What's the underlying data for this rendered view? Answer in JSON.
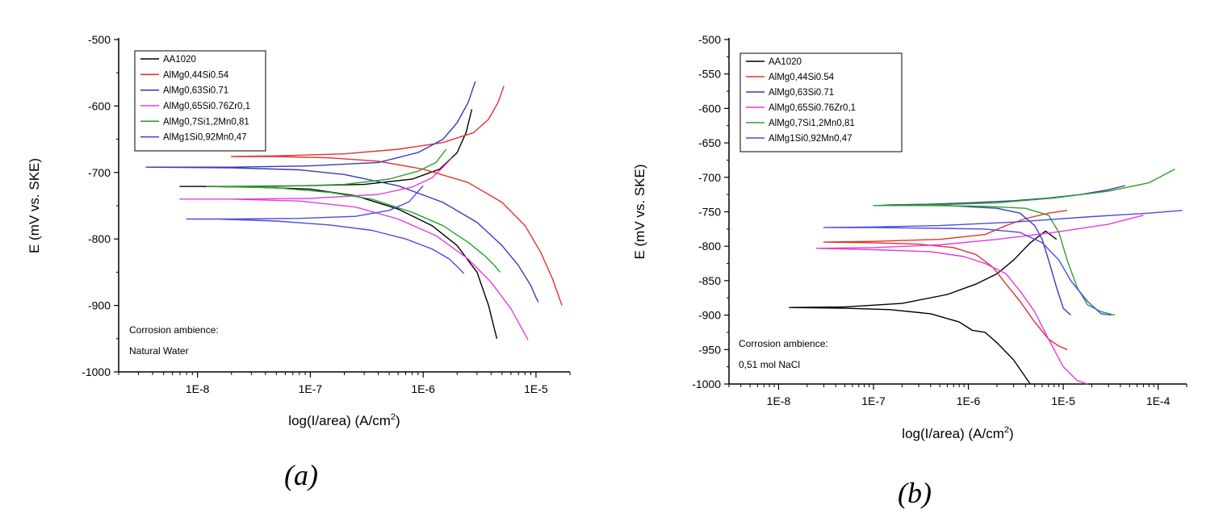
{
  "chart_data": [
    {
      "panel_label": "(a)",
      "type": "line",
      "xlabel_main": "log(I/area) (A/cm",
      "xlabel_sup": "2",
      "xlabel_tail": ")",
      "ylabel": "E (mV vs. SKE)",
      "x_scale": "log",
      "xlim": [
        2e-09,
        2e-05
      ],
      "ylim": [
        -1000,
        -500
      ],
      "x_ticks": [
        1e-08,
        1e-07,
        1e-06,
        1e-05
      ],
      "x_tick_labels": [
        "1E-8",
        "1E-7",
        "1E-6",
        "1E-5"
      ],
      "y_ticks": [
        -500,
        -600,
        -700,
        -800,
        -900,
        -1000
      ],
      "y_tick_labels": [
        "-500",
        "-600",
        "-700",
        "-800",
        "-900",
        "-1000"
      ],
      "grid": false,
      "legend_position": "top-left",
      "annotation": [
        "Corrosion ambience:",
        "Natural Water"
      ],
      "series": [
        {
          "name": "AA1020",
          "color": "#000000",
          "points": [
            [
              4.5e-06,
              -950
            ],
            [
              4.2e-06,
              -930
            ],
            [
              3.8e-06,
              -900
            ],
            [
              3e-06,
              -850
            ],
            [
              2e-06,
              -810
            ],
            [
              1.2e-06,
              -780
            ],
            [
              6e-07,
              -755
            ],
            [
              2.5e-07,
              -735
            ],
            [
              1e-07,
              -725
            ],
            [
              3e-08,
              -722
            ],
            [
              1e-08,
              -721
            ],
            [
              7e-09,
              -721
            ],
            [
              2e-08,
              -721
            ],
            [
              8e-08,
              -720
            ],
            [
              3e-07,
              -718
            ],
            [
              8e-07,
              -710
            ],
            [
              1.4e-06,
              -695
            ],
            [
              2e-06,
              -670
            ],
            [
              2.4e-06,
              -640
            ],
            [
              2.7e-06,
              -605
            ]
          ]
        },
        {
          "name": "AlMg0,44Si0.54",
          "color": "#e8302a",
          "points": [
            [
              1.7e-05,
              -900
            ],
            [
              1.4e-05,
              -860
            ],
            [
              1.1e-05,
              -820
            ],
            [
              8e-06,
              -780
            ],
            [
              5e-06,
              -745
            ],
            [
              2.5e-06,
              -715
            ],
            [
              1e-06,
              -695
            ],
            [
              4e-07,
              -683
            ],
            [
              1.5e-07,
              -678
            ],
            [
              5e-08,
              -676
            ],
            [
              2e-08,
              -676
            ],
            [
              5e-08,
              -675
            ],
            [
              2e-07,
              -672
            ],
            [
              6e-07,
              -665
            ],
            [
              1.5e-06,
              -655
            ],
            [
              2.8e-06,
              -640
            ],
            [
              3.8e-06,
              -620
            ],
            [
              4.6e-06,
              -595
            ],
            [
              5.2e-06,
              -570
            ]
          ]
        },
        {
          "name": "AlMg0,63Si0.71",
          "color": "#3a3ab8",
          "points": [
            [
              1.05e-05,
              -895
            ],
            [
              1e-05,
              -888
            ],
            [
              9e-06,
              -870
            ],
            [
              7e-06,
              -840
            ],
            [
              5e-06,
              -810
            ],
            [
              3e-06,
              -775
            ],
            [
              1.5e-06,
              -745
            ],
            [
              6e-07,
              -720
            ],
            [
              2e-07,
              -703
            ],
            [
              8e-08,
              -696
            ],
            [
              2e-08,
              -693
            ],
            [
              3.5e-09,
              -692
            ],
            [
              2e-08,
              -692
            ],
            [
              1e-07,
              -690
            ],
            [
              4e-07,
              -685
            ],
            [
              9e-07,
              -670
            ],
            [
              1.5e-06,
              -650
            ],
            [
              2e-06,
              -625
            ],
            [
              2.5e-06,
              -595
            ],
            [
              2.9e-06,
              -563
            ]
          ]
        },
        {
          "name": "AlMg0,65Si0.76Zr0,1",
          "color": "#e83ae0",
          "points": [
            [
              8.5e-06,
              -952
            ],
            [
              7.5e-06,
              -935
            ],
            [
              6e-06,
              -905
            ],
            [
              4e-06,
              -865
            ],
            [
              2.5e-06,
              -830
            ],
            [
              1.3e-06,
              -795
            ],
            [
              6e-07,
              -770
            ],
            [
              2.5e-07,
              -752
            ],
            [
              8e-08,
              -743
            ],
            [
              2e-08,
              -740
            ],
            [
              7e-09,
              -740
            ],
            [
              2e-08,
              -740
            ],
            [
              1e-07,
              -739
            ],
            [
              4e-07,
              -733
            ],
            [
              8e-07,
              -722
            ],
            [
              1.2e-06,
              -708
            ],
            [
              1.5e-06,
              -692
            ],
            [
              1.8e-06,
              -678
            ]
          ]
        },
        {
          "name": "AlMg0,7Si1,2Mn0,81",
          "color": "#2aa02a",
          "points": [
            [
              4.8e-06,
              -850
            ],
            [
              4.3e-06,
              -840
            ],
            [
              3.5e-06,
              -825
            ],
            [
              2.5e-06,
              -805
            ],
            [
              1.5e-06,
              -780
            ],
            [
              8e-07,
              -760
            ],
            [
              3.5e-07,
              -740
            ],
            [
              1.5e-07,
              -730
            ],
            [
              5e-08,
              -723
            ],
            [
              1.2e-08,
              -721
            ],
            [
              5e-08,
              -721
            ],
            [
              2e-07,
              -718
            ],
            [
              5e-07,
              -710
            ],
            [
              9e-07,
              -698
            ],
            [
              1.3e-06,
              -685
            ],
            [
              1.6e-06,
              -665
            ]
          ]
        },
        {
          "name": "AlMg1Si0,92Mn0,47",
          "color": "#4a4ae8",
          "points": [
            [
              2.3e-06,
              -852
            ],
            [
              2.1e-06,
              -845
            ],
            [
              1.7e-06,
              -830
            ],
            [
              1.2e-06,
              -815
            ],
            [
              7e-07,
              -800
            ],
            [
              3.5e-07,
              -787
            ],
            [
              1.5e-07,
              -779
            ],
            [
              5e-08,
              -773
            ],
            [
              1.5e-08,
              -770
            ],
            [
              8e-09,
              -770
            ],
            [
              2e-08,
              -770
            ],
            [
              8e-08,
              -769
            ],
            [
              2.5e-07,
              -766
            ],
            [
              5e-07,
              -757
            ],
            [
              7.5e-07,
              -744
            ],
            [
              1e-06,
              -720
            ]
          ]
        }
      ]
    },
    {
      "panel_label": "(b)",
      "type": "line",
      "xlabel_main": "log(I/area) (A/cm",
      "xlabel_sup": "2",
      "xlabel_tail": ")",
      "ylabel": "E (mV vs. SKE)",
      "x_scale": "log",
      "xlim": [
        3e-09,
        0.0002
      ],
      "ylim": [
        -1000,
        -500
      ],
      "x_ticks": [
        1e-08,
        1e-07,
        1e-06,
        1e-05,
        0.0001
      ],
      "x_tick_labels": [
        "1E-8",
        "1E-7",
        "1E-6",
        "1E-5",
        "1E-4"
      ],
      "y_ticks": [
        -500,
        -550,
        -600,
        -650,
        -700,
        -750,
        -800,
        -850,
        -900,
        -950,
        -1000
      ],
      "y_tick_labels": [
        "-500",
        "-550",
        "-600",
        "-650",
        "-700",
        "-750",
        "-800",
        "-850",
        "-900",
        "-950",
        "-1000"
      ],
      "grid": false,
      "legend_position": "top-left",
      "annotation": [
        "Corrosion ambience:",
        "0,51 mol NaCl"
      ],
      "series": [
        {
          "name": "AA1020",
          "color": "#000000",
          "points": [
            [
              4.5e-06,
              -1000
            ],
            [
              4e-06,
              -990
            ],
            [
              3e-06,
              -965
            ],
            [
              2e-06,
              -940
            ],
            [
              1.5e-06,
              -925
            ],
            [
              1.1e-06,
              -922
            ],
            [
              8e-07,
              -910
            ],
            [
              4e-07,
              -898
            ],
            [
              1.5e-07,
              -892
            ],
            [
              5e-08,
              -890
            ],
            [
              1.3e-08,
              -889
            ],
            [
              5e-08,
              -888
            ],
            [
              2e-07,
              -883
            ],
            [
              6e-07,
              -870
            ],
            [
              1.2e-06,
              -855
            ],
            [
              2e-06,
              -840
            ],
            [
              3e-06,
              -820
            ],
            [
              4.5e-06,
              -795
            ],
            [
              6.5e-06,
              -778
            ],
            [
              8.5e-06,
              -790
            ]
          ]
        },
        {
          "name": "AlMg0,44Si0.54",
          "color": "#e8302a",
          "points": [
            [
              1.1e-05,
              -950
            ],
            [
              9e-06,
              -945
            ],
            [
              7e-06,
              -935
            ],
            [
              5e-06,
              -910
            ],
            [
              3.5e-06,
              -880
            ],
            [
              2.5e-06,
              -855
            ],
            [
              1.8e-06,
              -830
            ],
            [
              1.2e-06,
              -812
            ],
            [
              7e-07,
              -802
            ],
            [
              3e-07,
              -797
            ],
            [
              1e-07,
              -795
            ],
            [
              3e-08,
              -794
            ],
            [
              1e-07,
              -793
            ],
            [
              5e-07,
              -790
            ],
            [
              1.5e-06,
              -783
            ],
            [
              2.5e-06,
              -770
            ],
            [
              4e-06,
              -760
            ],
            [
              7e-06,
              -752
            ],
            [
              1.1e-05,
              -748
            ]
          ]
        },
        {
          "name": "AlMg0,63Si0.71",
          "color": "#3a3ab8",
          "points": [
            [
              4.5e-05,
              -712
            ],
            [
              3e-05,
              -718
            ],
            [
              1.5e-05,
              -725
            ],
            [
              7e-06,
              -730
            ],
            [
              3e-06,
              -734
            ],
            [
              1e-06,
              -737
            ],
            [
              4e-07,
              -739
            ],
            [
              1.5e-07,
              -740
            ],
            [
              1.1e-07,
              -741
            ],
            [
              2e-07,
              -740
            ],
            [
              6e-07,
              -741
            ],
            [
              2e-06,
              -745
            ],
            [
              3.5e-06,
              -752
            ],
            [
              5e-06,
              -770
            ],
            [
              6e-06,
              -790
            ],
            [
              7e-06,
              -820
            ],
            [
              8.5e-06,
              -860
            ],
            [
              1e-05,
              -890
            ],
            [
              1.2e-05,
              -900
            ]
          ]
        },
        {
          "name": "AlMg0,65Si0.76Zr0,1",
          "color": "#e83ae0",
          "points": [
            [
              1.8e-05,
              -1000
            ],
            [
              1.4e-05,
              -995
            ],
            [
              1e-05,
              -975
            ],
            [
              7e-06,
              -935
            ],
            [
              5e-06,
              -895
            ],
            [
              3.5e-06,
              -865
            ],
            [
              2.5e-06,
              -840
            ],
            [
              1.5e-06,
              -825
            ],
            [
              9e-07,
              -815
            ],
            [
              4e-07,
              -808
            ],
            [
              1e-07,
              -805
            ],
            [
              2.5e-08,
              -803
            ],
            [
              1e-07,
              -802
            ],
            [
              5e-07,
              -798
            ],
            [
              2e-06,
              -790
            ],
            [
              8e-06,
              -780
            ],
            [
              3e-05,
              -768
            ],
            [
              7e-05,
              -755
            ]
          ]
        },
        {
          "name": "AlMg0,7Si1,2Mn0,81",
          "color": "#2aa02a",
          "points": [
            [
              3.5e-05,
              -900
            ],
            [
              2.5e-05,
              -895
            ],
            [
              1.8e-05,
              -885
            ],
            [
              1.4e-05,
              -860
            ],
            [
              1.1e-05,
              -820
            ],
            [
              9e-06,
              -780
            ],
            [
              7e-06,
              -755
            ],
            [
              4e-06,
              -745
            ],
            [
              1.5e-06,
              -742
            ],
            [
              4e-07,
              -741
            ],
            [
              1e-07,
              -741
            ],
            [
              4e-07,
              -740
            ],
            [
              2e-06,
              -737
            ],
            [
              8e-06,
              -730
            ],
            [
              3e-05,
              -720
            ],
            [
              8e-05,
              -708
            ],
            [
              0.00015,
              -688
            ]
          ]
        },
        {
          "name": "AlMg1Si0,92Mn0,47",
          "color": "#4a4ae8",
          "points": [
            [
              3.2e-05,
              -900
            ],
            [
              2.5e-05,
              -898
            ],
            [
              1.8e-05,
              -880
            ],
            [
              1.2e-05,
              -850
            ],
            [
              9e-06,
              -820
            ],
            [
              6e-06,
              -795
            ],
            [
              3.5e-06,
              -780
            ],
            [
              1.5e-06,
              -775
            ],
            [
              5e-07,
              -774
            ],
            [
              1e-07,
              -773
            ],
            [
              3e-08,
              -773
            ],
            [
              1e-07,
              -772
            ],
            [
              5e-07,
              -770
            ],
            [
              3e-06,
              -765
            ],
            [
              2e-05,
              -757
            ],
            [
              8e-05,
              -752
            ],
            [
              0.00018,
              -748
            ]
          ]
        }
      ]
    }
  ]
}
